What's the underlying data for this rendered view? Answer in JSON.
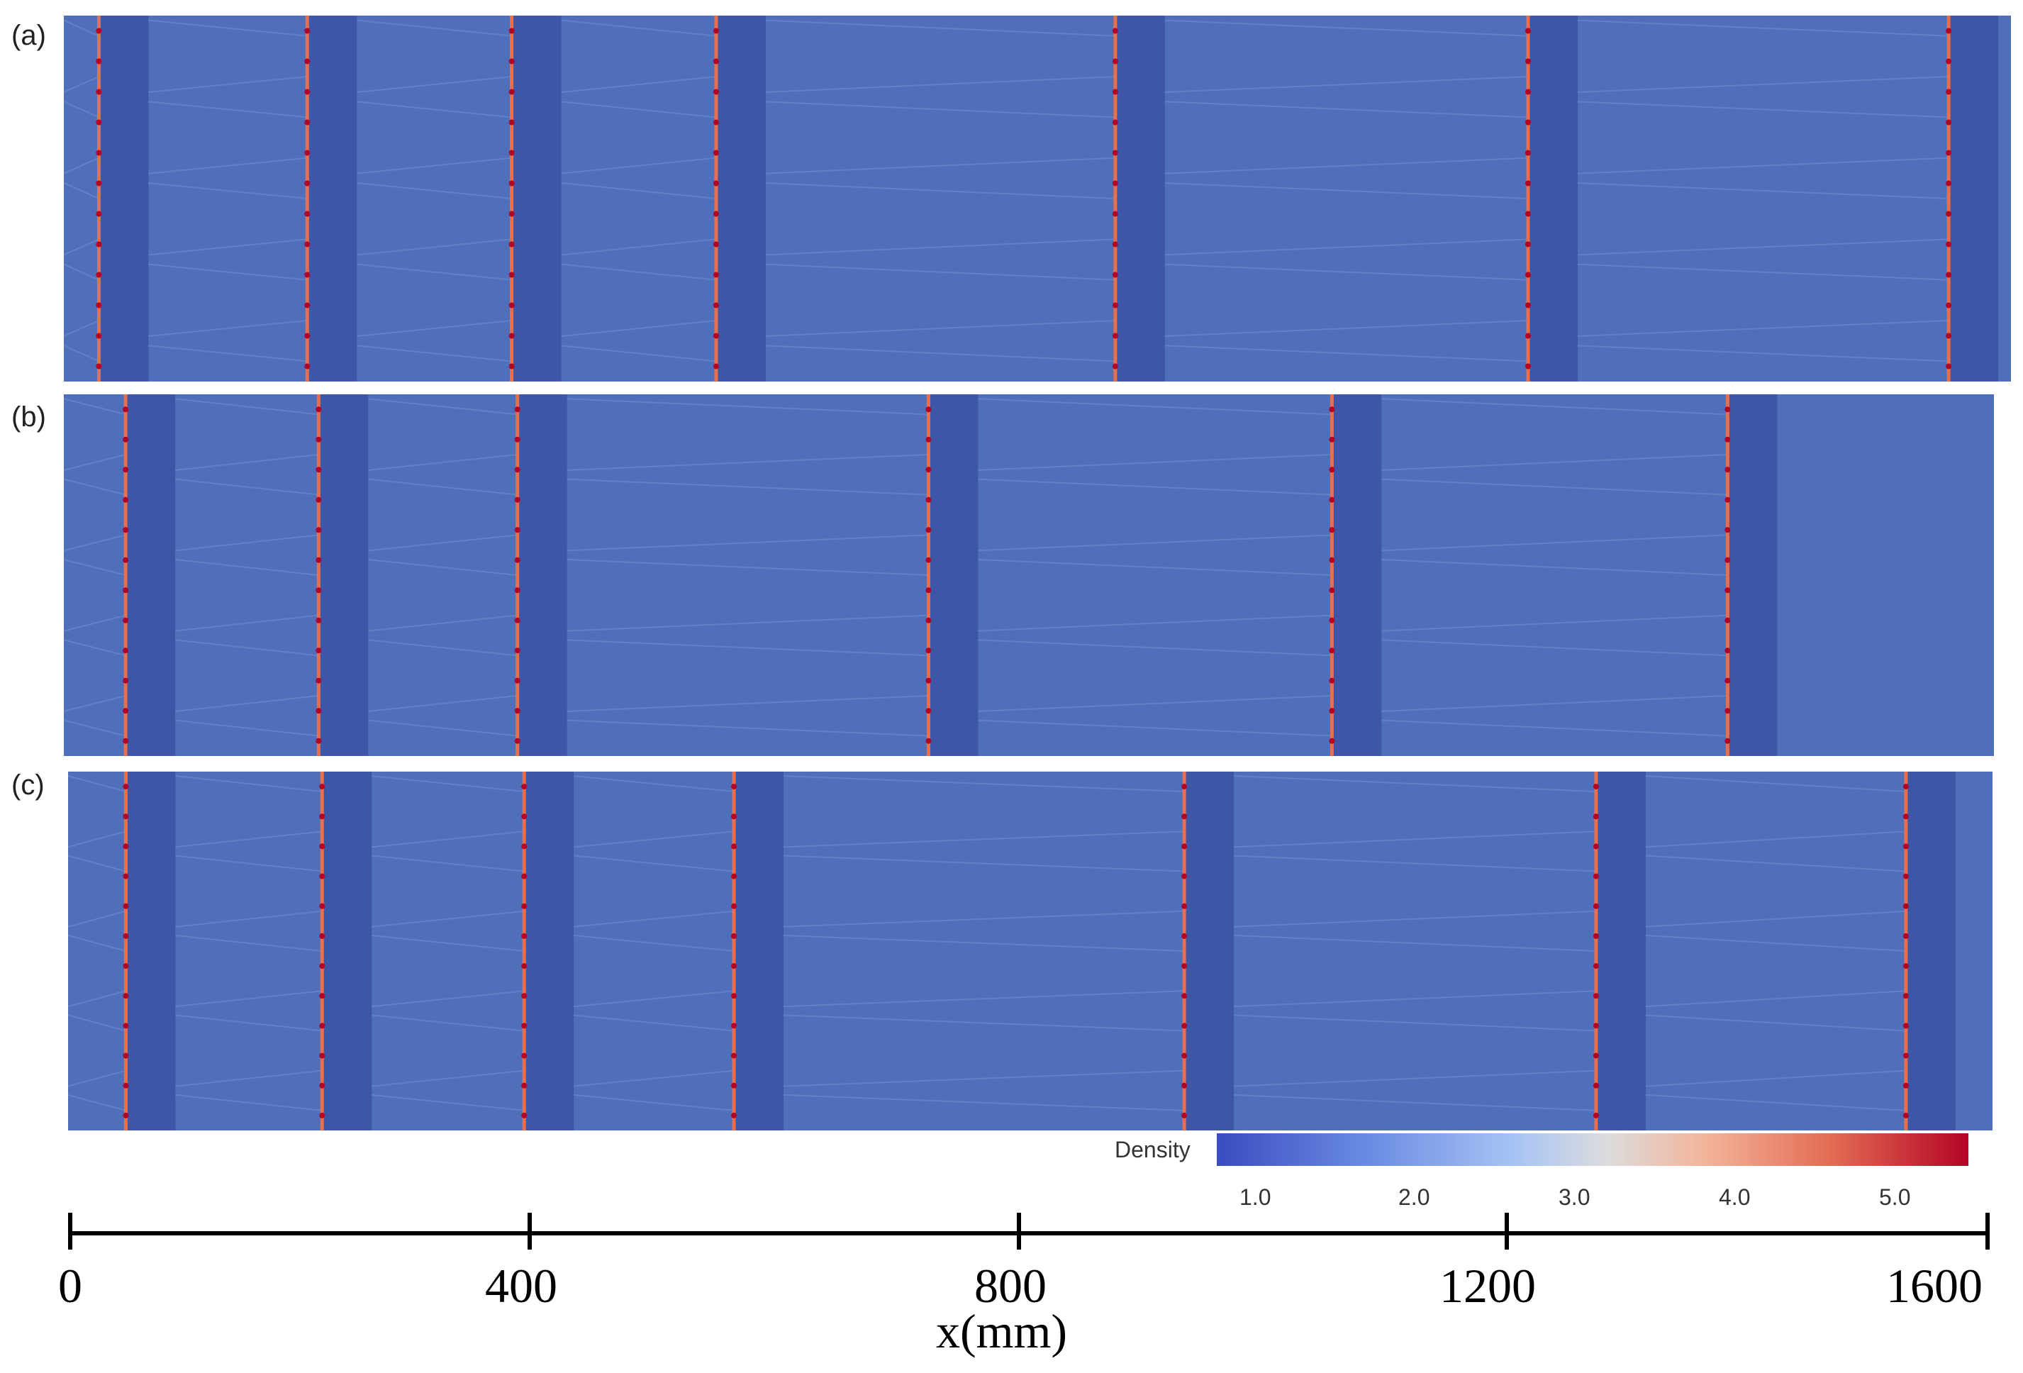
{
  "panels": [
    {
      "label": "(a)",
      "fronts": [
        0.018,
        0.125,
        0.23,
        0.335,
        0.54,
        0.752,
        0.968
      ]
    },
    {
      "label": "(b)",
      "fronts": [
        0.032,
        0.132,
        0.235,
        0.448,
        0.657,
        0.862
      ]
    },
    {
      "label": "(c)",
      "fronts": [
        0.03,
        0.132,
        0.237,
        0.346,
        0.58,
        0.794,
        0.955
      ]
    }
  ],
  "colorbar": {
    "title": "Density",
    "ticks": [
      "1.0",
      "2.0",
      "3.0",
      "4.0",
      "5.0"
    ]
  },
  "axis": {
    "title": "x(mm)",
    "ticks": [
      "0",
      "400",
      "800",
      "1200",
      "1600"
    ]
  }
}
